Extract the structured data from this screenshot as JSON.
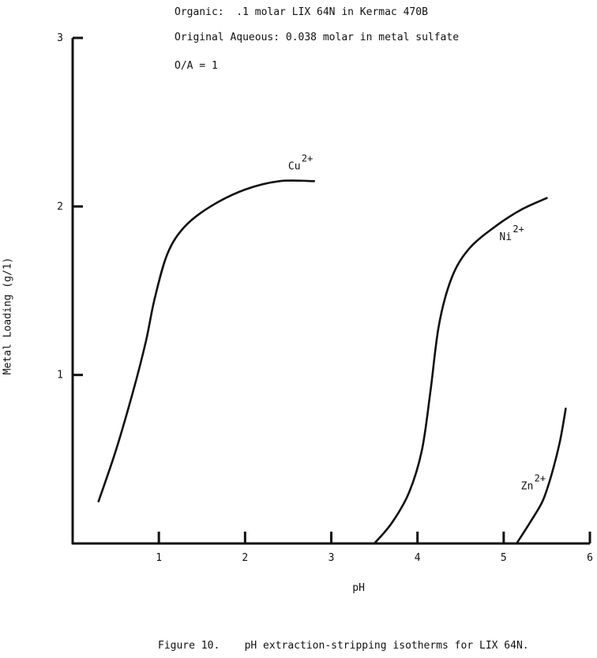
{
  "annotations": [
    "Organic:  .1 molar LIX 64N in Kermac 470B",
    "Original Aqueous: 0.038 molar in metal sulfate",
    "O/A = 1"
  ],
  "caption": "Figure 10.    pH extraction-stripping isotherms for LIX 64N.",
  "chart_data": {
    "type": "line",
    "xlabel": "pH",
    "ylabel": "Metal Loading (g/1)",
    "xlim": [
      0,
      6
    ],
    "ylim": [
      0,
      3
    ],
    "x_ticks": [
      1,
      2,
      3,
      4,
      5,
      6
    ],
    "y_ticks": [
      1,
      2,
      3
    ],
    "grid": false,
    "legend": "none",
    "series": [
      {
        "name": "Cu",
        "superscript": "2+",
        "x": [
          0.3,
          0.5,
          0.7,
          0.85,
          0.95,
          1.1,
          1.3,
          1.6,
          2.0,
          2.4,
          2.8
        ],
        "y": [
          0.25,
          0.55,
          0.9,
          1.2,
          1.45,
          1.72,
          1.88,
          2.0,
          2.1,
          2.15,
          2.15
        ],
        "label_at": [
          2.5,
          2.22
        ]
      },
      {
        "name": "Ni",
        "superscript": "2+",
        "x": [
          3.5,
          3.7,
          3.9,
          4.05,
          4.15,
          4.25,
          4.4,
          4.6,
          4.9,
          5.2,
          5.5
        ],
        "y": [
          0.0,
          0.12,
          0.3,
          0.55,
          0.9,
          1.3,
          1.58,
          1.75,
          1.88,
          1.98,
          2.05
        ],
        "label_at": [
          4.95,
          1.8
        ]
      },
      {
        "name": "Zn",
        "superscript": "2+",
        "x": [
          5.15,
          5.3,
          5.45,
          5.55,
          5.65,
          5.72
        ],
        "y": [
          0.0,
          0.12,
          0.25,
          0.4,
          0.6,
          0.8
        ],
        "label_at": [
          5.2,
          0.32
        ]
      }
    ]
  }
}
